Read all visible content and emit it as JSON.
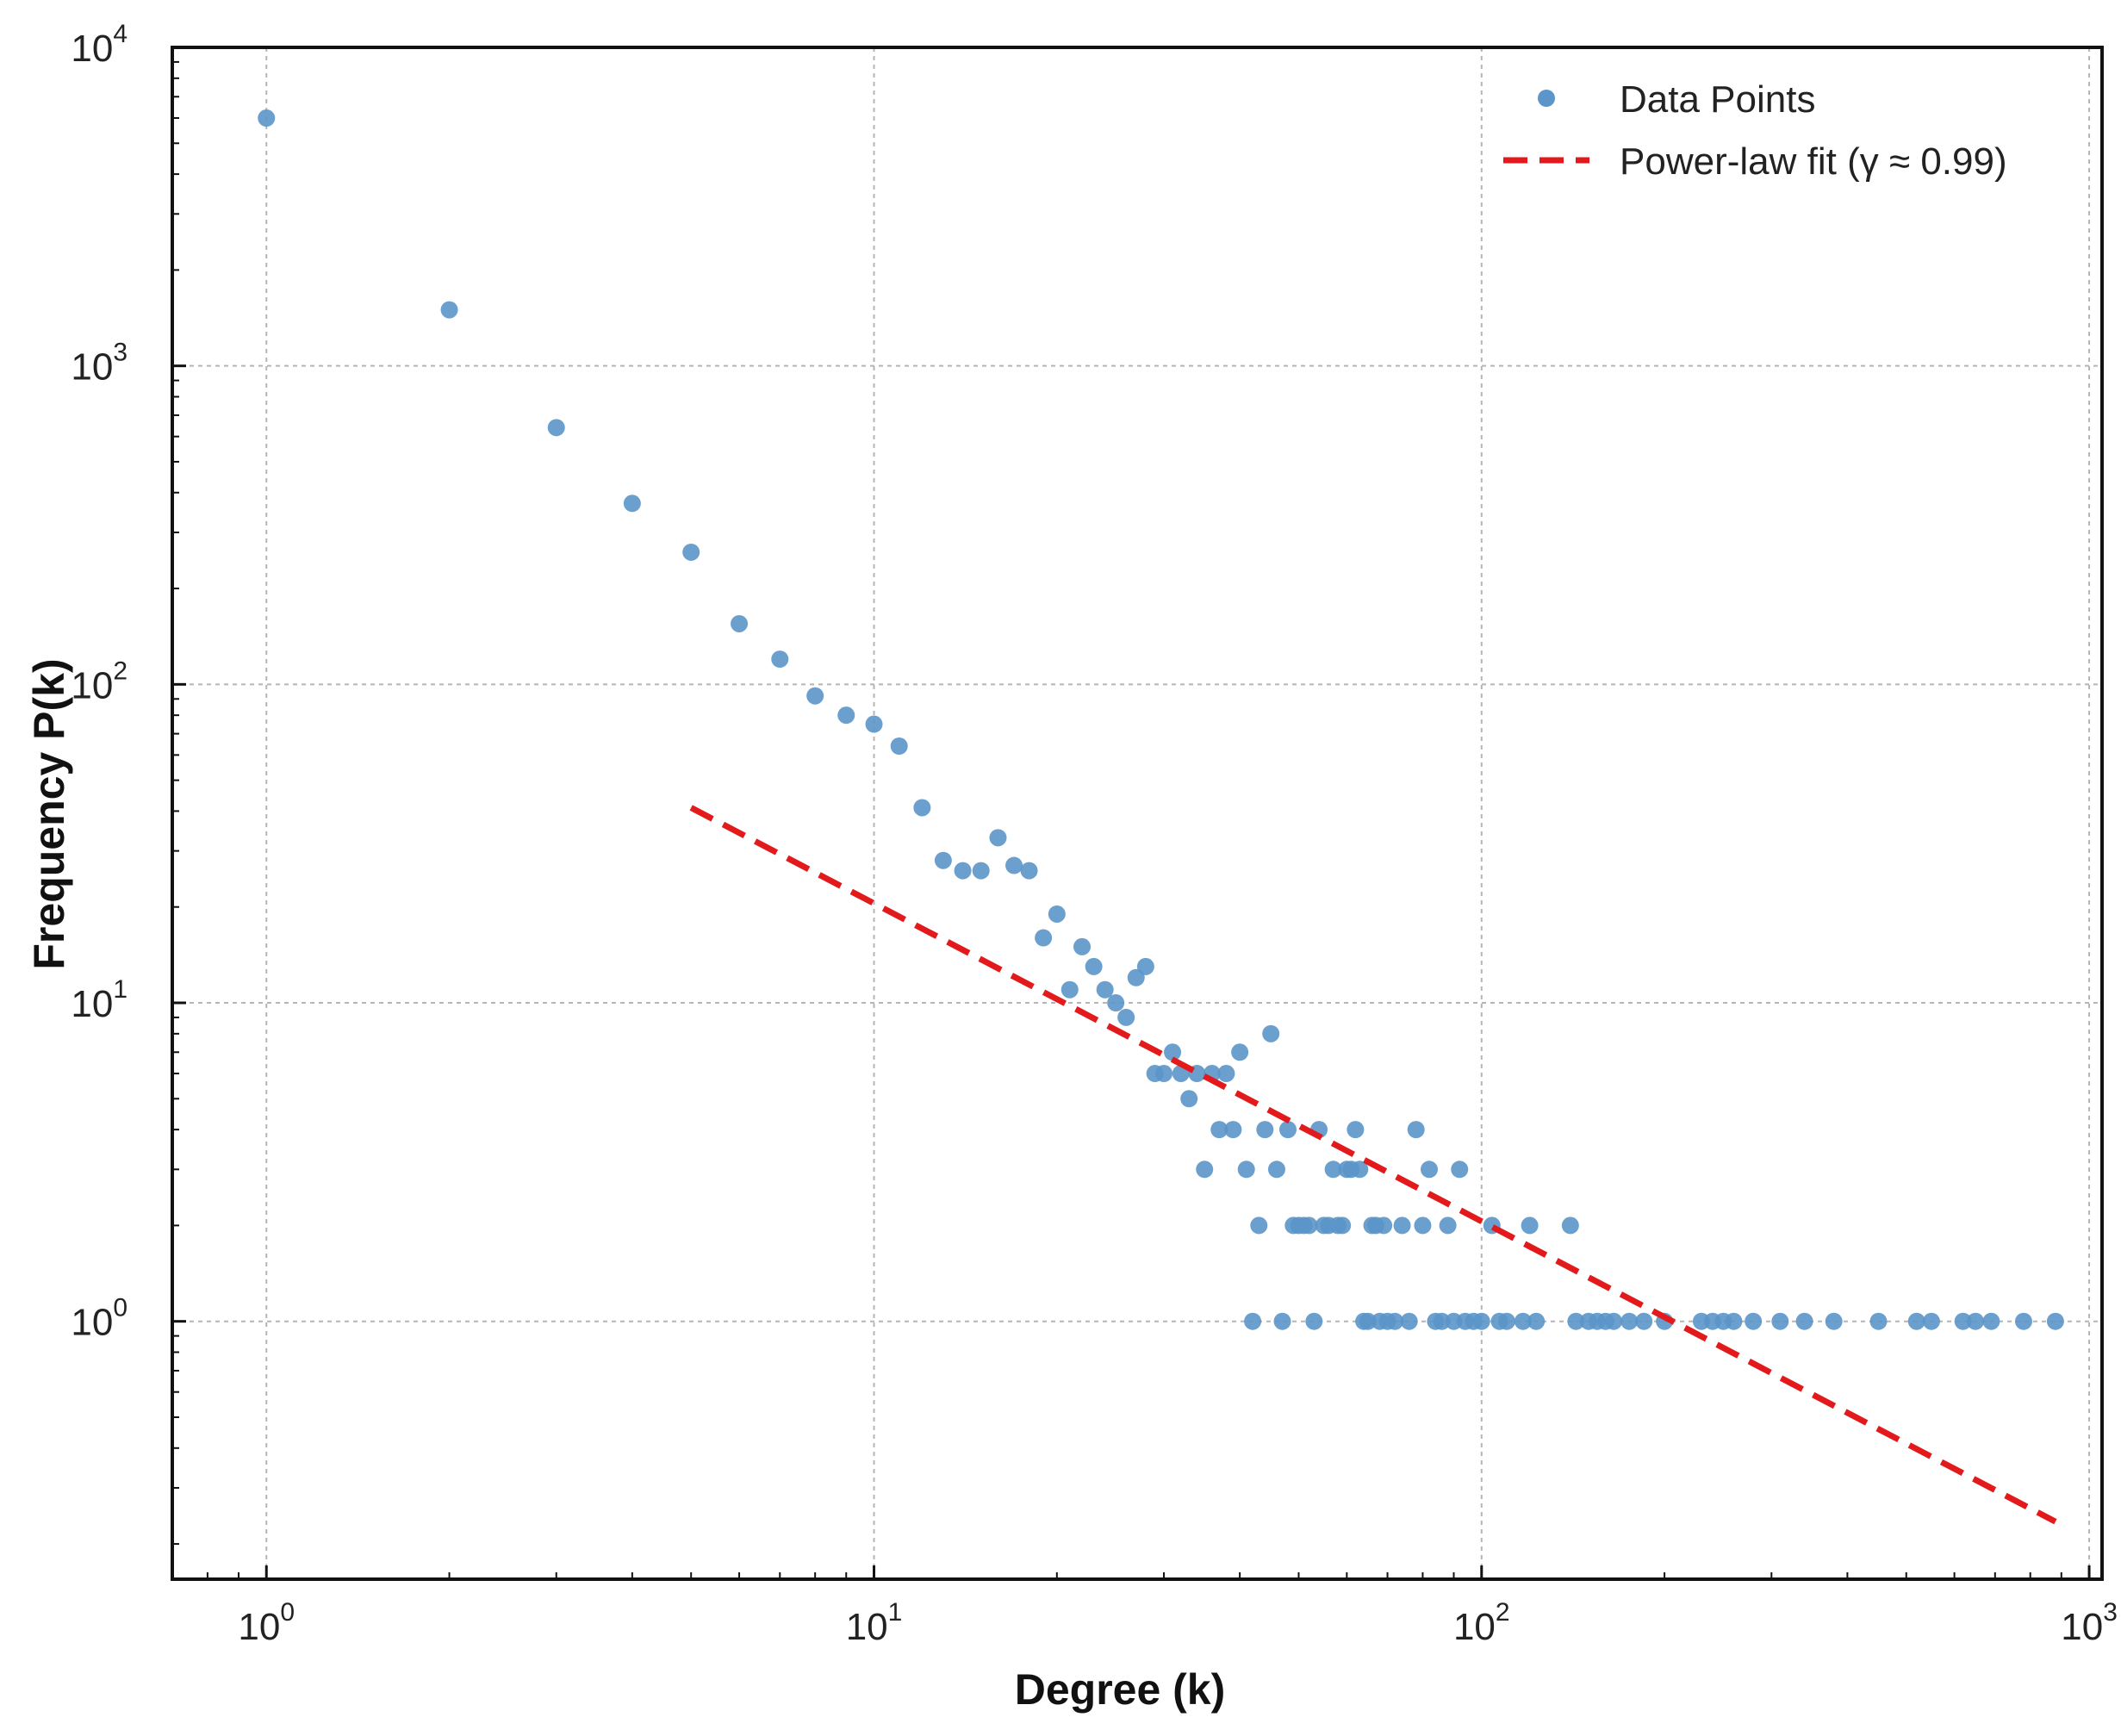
{
  "chart_data": {
    "type": "scatter",
    "xlabel": "Degree (k)",
    "ylabel": "Frequency P(k)",
    "xscale": "log",
    "yscale": "log",
    "xlim": [
      0.7,
      1050
    ],
    "ylim": [
      0.155,
      10000
    ],
    "grid": true,
    "legend_position": "top-right",
    "x_ticks": [
      {
        "value": 1,
        "base": "10",
        "exp": "0"
      },
      {
        "value": 10,
        "base": "10",
        "exp": "1"
      },
      {
        "value": 100,
        "base": "10",
        "exp": "2"
      },
      {
        "value": 1000,
        "base": "10",
        "exp": "3"
      }
    ],
    "y_ticks": [
      {
        "value": 1,
        "base": "10",
        "exp": "0"
      },
      {
        "value": 10,
        "base": "10",
        "exp": "1"
      },
      {
        "value": 100,
        "base": "10",
        "exp": "2"
      },
      {
        "value": 1000,
        "base": "10",
        "exp": "3"
      },
      {
        "value": 10000,
        "base": "10",
        "exp": "4"
      }
    ],
    "series": [
      {
        "name": "Data Points",
        "kind": "scatter",
        "color": "#5b95c9",
        "points": [
          [
            1,
            6000
          ],
          [
            2,
            1500
          ],
          [
            3,
            640
          ],
          [
            4,
            370
          ],
          [
            5,
            260
          ],
          [
            6,
            155
          ],
          [
            7,
            120
          ],
          [
            8,
            92
          ],
          [
            9,
            80
          ],
          [
            10,
            75
          ],
          [
            11,
            64
          ],
          [
            12,
            41
          ],
          [
            13,
            28
          ],
          [
            14,
            26
          ],
          [
            15,
            26
          ],
          [
            16,
            33
          ],
          [
            17,
            27
          ],
          [
            18,
            26
          ],
          [
            19,
            16
          ],
          [
            20,
            19
          ],
          [
            21,
            11
          ],
          [
            22,
            15
          ],
          [
            23,
            13
          ],
          [
            24,
            11
          ],
          [
            25,
            10
          ],
          [
            26,
            9
          ],
          [
            27,
            12
          ],
          [
            28,
            13
          ],
          [
            29,
            6
          ],
          [
            30,
            6
          ],
          [
            31,
            7
          ],
          [
            32,
            6
          ],
          [
            33,
            5
          ],
          [
            34,
            6
          ],
          [
            35,
            3
          ],
          [
            36,
            6
          ],
          [
            37,
            4
          ],
          [
            38,
            6
          ],
          [
            39,
            4
          ],
          [
            40,
            7
          ],
          [
            41,
            3
          ],
          [
            42,
            1
          ],
          [
            43,
            2
          ],
          [
            44,
            4
          ],
          [
            45,
            8
          ],
          [
            46,
            3
          ],
          [
            47,
            1
          ],
          [
            48,
            4
          ],
          [
            49,
            2
          ],
          [
            50,
            2
          ],
          [
            51,
            2
          ],
          [
            52,
            2
          ],
          [
            53,
            1
          ],
          [
            54,
            4
          ],
          [
            55,
            2
          ],
          [
            56,
            2
          ],
          [
            57,
            3
          ],
          [
            58,
            2
          ],
          [
            59,
            2
          ],
          [
            60,
            3
          ],
          [
            61,
            3
          ],
          [
            62,
            4
          ],
          [
            63,
            3
          ],
          [
            64,
            1
          ],
          [
            65,
            1
          ],
          [
            66,
            2
          ],
          [
            67,
            2
          ],
          [
            68,
            1
          ],
          [
            69,
            2
          ],
          [
            70,
            1
          ],
          [
            72,
            1
          ],
          [
            74,
            2
          ],
          [
            76,
            1
          ],
          [
            78,
            4
          ],
          [
            80,
            2
          ],
          [
            82,
            3
          ],
          [
            84,
            1
          ],
          [
            86,
            1
          ],
          [
            88,
            2
          ],
          [
            90,
            1
          ],
          [
            92,
            3
          ],
          [
            94,
            1
          ],
          [
            97,
            1
          ],
          [
            100,
            1
          ],
          [
            104,
            2
          ],
          [
            107,
            1
          ],
          [
            110,
            1
          ],
          [
            117,
            1
          ],
          [
            120,
            2
          ],
          [
            123,
            1
          ],
          [
            140,
            2
          ],
          [
            143,
            1
          ],
          [
            150,
            1
          ],
          [
            155,
            1
          ],
          [
            160,
            1
          ],
          [
            165,
            1
          ],
          [
            175,
            1
          ],
          [
            185,
            1
          ],
          [
            200,
            1
          ],
          [
            230,
            1
          ],
          [
            240,
            1
          ],
          [
            250,
            1
          ],
          [
            260,
            1
          ],
          [
            280,
            1
          ],
          [
            310,
            1
          ],
          [
            340,
            1
          ],
          [
            380,
            1
          ],
          [
            450,
            1
          ],
          [
            520,
            1
          ],
          [
            550,
            1
          ],
          [
            620,
            1
          ],
          [
            650,
            1
          ],
          [
            690,
            1
          ],
          [
            780,
            1
          ],
          [
            880,
            1
          ]
        ]
      },
      {
        "name": "Power-law fit (γ ≈ 0.99)",
        "kind": "line",
        "style": "dashed",
        "color": "#e31a1c",
        "points": [
          [
            5,
            41
          ],
          [
            880,
            0.235
          ]
        ]
      }
    ]
  }
}
